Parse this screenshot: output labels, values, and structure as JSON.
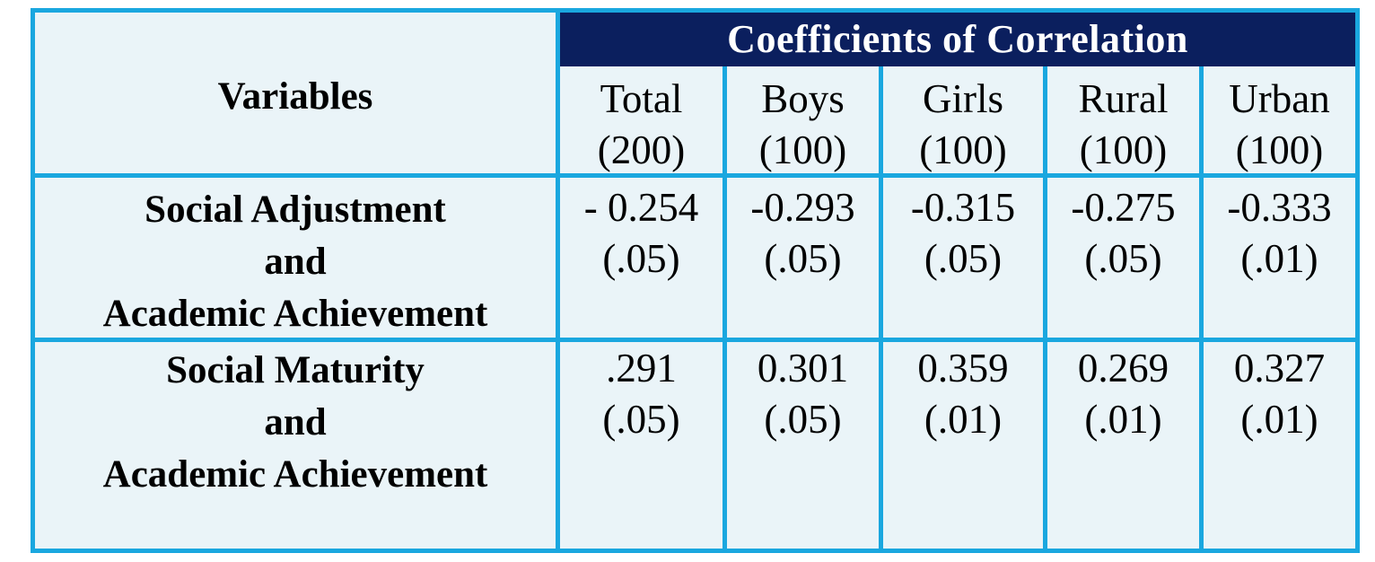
{
  "table": {
    "variables_header": "Variables",
    "group_header": "Coefficients of Correlation",
    "columns": [
      {
        "name": "Total",
        "n": "(200)"
      },
      {
        "name": "Boys",
        "n": "(100)"
      },
      {
        "name": "Girls",
        "n": "(100)"
      },
      {
        "name": "Rural",
        "n": "(100)"
      },
      {
        "name": "Urban",
        "n": "(100)"
      }
    ],
    "rows": [
      {
        "label": [
          "Social Adjustment",
          "and",
          "Academic Achievement"
        ],
        "cells": [
          {
            "r": "- 0.254",
            "p": "(.05)"
          },
          {
            "r": "-0.293",
            "p": "(.05)"
          },
          {
            "r": "-0.315",
            "p": "(.05)"
          },
          {
            "r": "-0.275",
            "p": "(.05)"
          },
          {
            "r": "-0.333",
            "p": "(.01)"
          }
        ]
      },
      {
        "label": [
          "Social Maturity",
          "and",
          "Academic Achievement"
        ],
        "cells": [
          {
            "r": ".291",
            "p": "(.05)"
          },
          {
            "r": "0.301",
            "p": "(.05)"
          },
          {
            "r": "0.359",
            "p": "(.01)"
          },
          {
            "r": "0.269",
            "p": "(.01)"
          },
          {
            "r": "0.327",
            "p": "(.01)"
          }
        ]
      }
    ]
  },
  "colors": {
    "border": "#1aa7df",
    "header_band": "#0b1f5e",
    "cell_background": "#eaf4f8"
  }
}
